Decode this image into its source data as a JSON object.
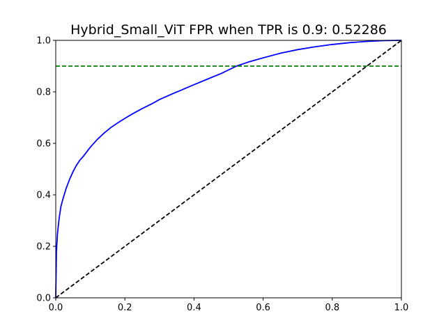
{
  "chart_data": {
    "type": "line",
    "title": "Hybrid_Small_ViT FPR when TPR is 0.9: 0.52286",
    "xlabel": "",
    "ylabel": "",
    "xlim": [
      0.0,
      1.0
    ],
    "ylim": [
      0.0,
      1.0
    ],
    "x_ticks": [
      "0.0",
      "0.2",
      "0.4",
      "0.6",
      "0.8",
      "1.0"
    ],
    "y_ticks": [
      "0.0",
      "0.2",
      "0.4",
      "0.6",
      "0.8",
      "1.0"
    ],
    "grid": false,
    "legend": null,
    "series": [
      {
        "color": "#0000ff",
        "style": "solid",
        "x": [
          0.0,
          0.002,
          0.005,
          0.01,
          0.015,
          0.02,
          0.03,
          0.04,
          0.05,
          0.06,
          0.07,
          0.08,
          0.1,
          0.12,
          0.14,
          0.16,
          0.18,
          0.2,
          0.22,
          0.25,
          0.28,
          0.3,
          0.33,
          0.36,
          0.4,
          0.44,
          0.48,
          0.52286,
          0.56,
          0.6,
          0.65,
          0.7,
          0.75,
          0.8,
          0.85,
          0.9,
          0.95,
          1.0
        ],
        "y": [
          0.0,
          0.18,
          0.25,
          0.31,
          0.355,
          0.38,
          0.425,
          0.46,
          0.49,
          0.515,
          0.535,
          0.55,
          0.585,
          0.615,
          0.64,
          0.662,
          0.68,
          0.697,
          0.713,
          0.735,
          0.755,
          0.77,
          0.788,
          0.805,
          0.828,
          0.85,
          0.872,
          0.9,
          0.917,
          0.932,
          0.95,
          0.964,
          0.975,
          0.984,
          0.991,
          0.996,
          0.999,
          1.0
        ]
      },
      {
        "color": "#000000",
        "style": "dashed",
        "x": [
          0.0,
          1.0
        ],
        "y": [
          0.0,
          1.0
        ]
      },
      {
        "color": "#008000",
        "style": "dashed",
        "x": [
          0.0,
          1.0
        ],
        "y": [
          0.9,
          0.9
        ]
      }
    ]
  }
}
